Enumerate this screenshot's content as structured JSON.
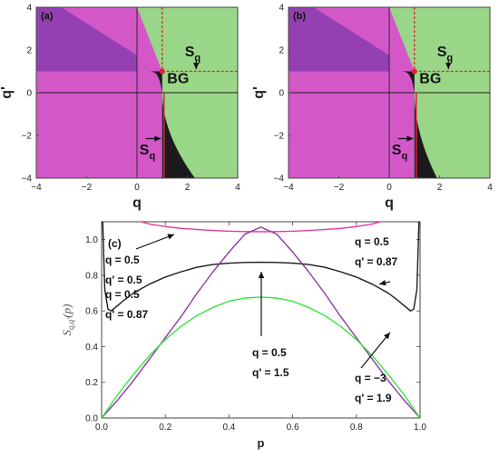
{
  "chart_data": [
    {
      "type": "region-map",
      "panel_label": "(a)",
      "xlabel": "q",
      "ylabel": "q'",
      "xlim": [
        -4,
        4
      ],
      "ylim": [
        -4,
        4
      ],
      "xticks": [
        "−4",
        "−2",
        "0",
        "2",
        "4"
      ],
      "yticks": [
        "4",
        "2",
        "0",
        "−2",
        "−4"
      ],
      "colors": {
        "magenta": "#d457c8",
        "purple": "#9440b2",
        "green": "#9ad687",
        "black": "#1b1b1b",
        "red": "#e21f3a"
      },
      "bg_point": [
        1,
        1
      ],
      "annotations": {
        "sq_upper": "S",
        "sq_upper_sub": "q",
        "bg": "BG",
        "sq_lower": "S",
        "sq_lower_sub": "q"
      },
      "black_tail_q_at_bottom": 2.3
    },
    {
      "type": "region-map",
      "panel_label": "(b)",
      "xlabel": "q",
      "ylabel": "q'",
      "xlim": [
        -4,
        4
      ],
      "ylim": [
        -4,
        4
      ],
      "xticks": [
        "−4",
        "−2",
        "0",
        "2",
        "4"
      ],
      "yticks": [
        "4",
        "2",
        "0",
        "−2",
        "−4"
      ],
      "colors": {
        "magenta": "#d457c8",
        "purple": "#9440b2",
        "green": "#9ad687",
        "black": "#1b1b1b",
        "red": "#e21f3a"
      },
      "bg_point": [
        1,
        1
      ],
      "annotations": {
        "sq_upper": "S",
        "sq_upper_sub": "q",
        "bg": "BG",
        "sq_lower": "S",
        "sq_lower_sub": "q"
      },
      "black_tail_q_at_bottom": 1.9
    },
    {
      "type": "line",
      "panel_label": "(c)",
      "xlabel": "p",
      "ylabel": "S",
      "ylabel_sub": "q,q'",
      "ylabel_suffix": "(p)",
      "xlim": [
        0,
        1
      ],
      "ylim": [
        0,
        1.1
      ],
      "xticks": [
        "0.0",
        "0.2",
        "0.4",
        "0.6",
        "0.8",
        "1.0"
      ],
      "yticks": [
        "0.0",
        "0.2",
        "0.4",
        "0.6",
        "0.8",
        "1.0"
      ],
      "series": [
        {
          "color": "#e6399b",
          "label_q": "q  = 0.5",
          "label_qp": "q' = 0.5",
          "x": [
            0.065,
            0.1,
            0.15,
            0.2,
            0.25,
            0.3,
            0.35,
            0.4,
            0.45,
            0.5,
            0.55,
            0.6,
            0.65,
            0.7,
            0.75,
            0.8,
            0.85,
            0.9,
            0.935
          ],
          "y": [
            1.16,
            1.112,
            1.087,
            1.073,
            1.063,
            1.056,
            1.051,
            1.047,
            1.045,
            1.044,
            1.045,
            1.047,
            1.051,
            1.056,
            1.063,
            1.073,
            1.087,
            1.112,
            1.16
          ]
        },
        {
          "color": "#1b1b1b",
          "label_q": "q  = 0.5",
          "label_qp": "q' = 0.87",
          "x": [
            0.002,
            0.005,
            0.01,
            0.02,
            0.03,
            0.05,
            0.07,
            0.1,
            0.15,
            0.2,
            0.25,
            0.3,
            0.35,
            0.4,
            0.45,
            0.5,
            0.55,
            0.6,
            0.65,
            0.7,
            0.75,
            0.8,
            0.85,
            0.9,
            0.93,
            0.95,
            0.97,
            0.98,
            0.99,
            0.995,
            0.998
          ],
          "y": [
            1.2,
            1.0,
            0.72,
            0.61,
            0.6,
            0.63,
            0.66,
            0.7,
            0.75,
            0.79,
            0.82,
            0.845,
            0.86,
            0.868,
            0.872,
            0.873,
            0.872,
            0.868,
            0.86,
            0.845,
            0.82,
            0.79,
            0.75,
            0.7,
            0.66,
            0.63,
            0.6,
            0.61,
            0.72,
            1.0,
            1.2
          ]
        },
        {
          "color": "#8e38a8",
          "label_q": "q  = 0.5",
          "label_qp": "q' = 1.5",
          "x": [
            0.0,
            0.05,
            0.1,
            0.15,
            0.2,
            0.25,
            0.3,
            0.35,
            0.4,
            0.45,
            0.5,
            0.55,
            0.6,
            0.65,
            0.7,
            0.75,
            0.8,
            0.85,
            0.9,
            0.95,
            1.0
          ],
          "y": [
            0.0,
            0.1,
            0.21,
            0.33,
            0.45,
            0.57,
            0.7,
            0.82,
            0.93,
            1.03,
            1.07,
            1.03,
            0.93,
            0.82,
            0.7,
            0.57,
            0.45,
            0.33,
            0.21,
            0.1,
            0.0
          ]
        },
        {
          "color": "#33e63a",
          "label_q": "q  = −3",
          "label_qp": "q' = 1.9",
          "x": [
            0.0,
            0.05,
            0.1,
            0.15,
            0.2,
            0.25,
            0.3,
            0.35,
            0.4,
            0.45,
            0.5,
            0.55,
            0.6,
            0.65,
            0.7,
            0.75,
            0.8,
            0.85,
            0.9,
            0.95,
            1.0
          ],
          "y": [
            0.0,
            0.13,
            0.245,
            0.35,
            0.44,
            0.515,
            0.575,
            0.62,
            0.655,
            0.672,
            0.678,
            0.672,
            0.655,
            0.62,
            0.575,
            0.515,
            0.44,
            0.35,
            0.245,
            0.13,
            0.0
          ]
        }
      ]
    }
  ]
}
